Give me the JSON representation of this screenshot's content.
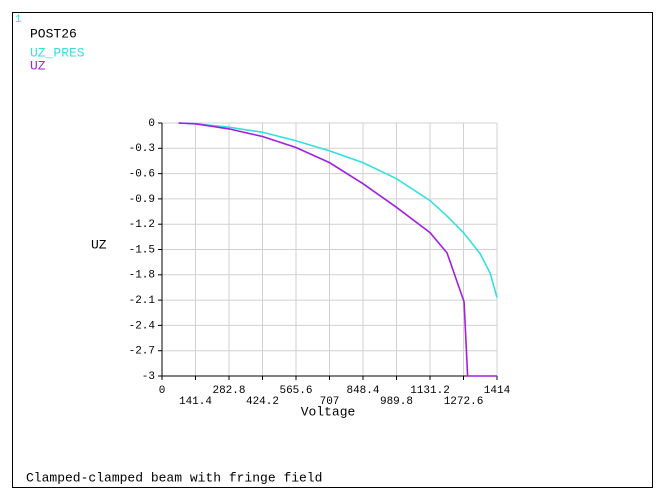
{
  "chart_data": {
    "type": "line",
    "figure_number": "1",
    "header": "POST26",
    "title": "Clamped-clamped beam with fringe field",
    "xlabel": "Voltage",
    "ylabel": "UZ",
    "xlim": [
      0,
      1414
    ],
    "ylim": [
      -3,
      0
    ],
    "xticks": [
      0,
      141.4,
      282.8,
      424.2,
      565.6,
      707,
      848.4,
      989.8,
      1131.2,
      1272.6,
      1414
    ],
    "yticks": [
      0,
      -0.3,
      -0.6,
      -0.9,
      -1.2,
      -1.5,
      -1.8,
      -2.1,
      -2.4,
      -2.7,
      -3
    ],
    "grid": true,
    "series": [
      {
        "name": "UZ_PRES",
        "color": "#33e0e0",
        "x": [
          70,
          141.4,
          282.8,
          424.2,
          565.6,
          707,
          848.4,
          989.8,
          1131.2,
          1202,
          1272.6,
          1343,
          1385,
          1414
        ],
        "values": [
          0,
          -0.01,
          -0.05,
          -0.11,
          -0.21,
          -0.33,
          -0.47,
          -0.66,
          -0.92,
          -1.1,
          -1.3,
          -1.55,
          -1.78,
          -2.07
        ]
      },
      {
        "name": "UZ",
        "color": "#a020e0",
        "x": [
          70,
          141.4,
          282.8,
          424.2,
          565.6,
          707,
          848.4,
          989.8,
          1131.2,
          1203,
          1275,
          1290,
          1414
        ],
        "values": [
          0,
          -0.01,
          -0.07,
          -0.16,
          -0.29,
          -0.47,
          -0.72,
          -1.0,
          -1.3,
          -1.54,
          -2.12,
          -3,
          -3
        ]
      }
    ]
  }
}
